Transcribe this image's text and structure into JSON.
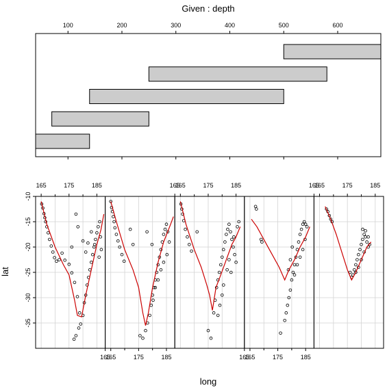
{
  "chart_data": {
    "type": "scatter",
    "title": "Given : depth",
    "xlabel": "long",
    "ylabel": "lat",
    "given": {
      "variable": "depth",
      "range": [
        40,
        680
      ],
      "ticks": [
        100,
        200,
        300,
        400,
        500,
        600
      ],
      "intervals": [
        [
          40,
          140
        ],
        [
          70,
          250
        ],
        [
          140,
          500
        ],
        [
          250,
          580
        ],
        [
          500,
          680
        ]
      ]
    },
    "panel_axes": {
      "xlim": [
        163,
        188
      ],
      "ylim": [
        -40,
        -10
      ],
      "x_ticks": [
        165,
        175,
        185
      ],
      "x_tick_labels": [
        "165",
        "175",
        "185"
      ],
      "y_ticks": [
        -10,
        -15,
        -20,
        -25,
        -30,
        -35
      ],
      "y_tick_labels": [
        "-10",
        "-15",
        "-20",
        "-25",
        "-30",
        "-35"
      ],
      "grid": true
    },
    "panels": [
      {
        "given_interval": [
          40,
          140
        ],
        "points": [
          [
            165.2,
            -11.5
          ],
          [
            165.6,
            -12.3
          ],
          [
            166.0,
            -13.4
          ],
          [
            166.3,
            -14.2
          ],
          [
            166.6,
            -15.0
          ],
          [
            167.0,
            -16.0
          ],
          [
            167.5,
            -17.2
          ],
          [
            168.0,
            -18.5
          ],
          [
            168.6,
            -19.8
          ],
          [
            169.2,
            -21.0
          ],
          [
            169.8,
            -22.1
          ],
          [
            170.5,
            -22.8
          ],
          [
            171.5,
            -22.5
          ],
          [
            172.5,
            -21.2
          ],
          [
            173.5,
            -22.6
          ],
          [
            175.0,
            -23.4
          ],
          [
            176.0,
            -25.1
          ],
          [
            177.0,
            -27.0
          ],
          [
            178.0,
            -29.8
          ],
          [
            178.8,
            -33.0
          ],
          [
            179.2,
            -35.2
          ],
          [
            178.5,
            -36.0
          ],
          [
            177.5,
            -37.5
          ],
          [
            176.8,
            -38.2
          ],
          [
            180.0,
            -33.5
          ],
          [
            180.5,
            -31.0
          ],
          [
            181.0,
            -29.5
          ],
          [
            181.5,
            -27.5
          ],
          [
            182.0,
            -26.0
          ],
          [
            182.5,
            -24.5
          ],
          [
            183.0,
            -23.0
          ],
          [
            183.5,
            -21.5
          ],
          [
            184.0,
            -20.0
          ],
          [
            184.5,
            -18.5
          ],
          [
            185.0,
            -17.2
          ],
          [
            185.5,
            -16.0
          ],
          [
            186.0,
            -15.0
          ],
          [
            186.3,
            -18.0
          ],
          [
            186.6,
            -20.5
          ],
          [
            185.8,
            -22.0
          ],
          [
            184.2,
            -19.5
          ],
          [
            183.0,
            -17.0
          ],
          [
            181.8,
            -19.2
          ],
          [
            181.0,
            -21.0
          ],
          [
            180.0,
            -18.8
          ],
          [
            178.2,
            -16.0
          ],
          [
            177.5,
            -13.5
          ],
          [
            176.0,
            -20.0
          ]
        ],
        "fit": [
          [
            165.0,
            -11.0
          ],
          [
            167.0,
            -15.5
          ],
          [
            170.0,
            -20.0
          ],
          [
            173.0,
            -23.5
          ],
          [
            175.0,
            -25.5
          ],
          [
            177.0,
            -30.5
          ],
          [
            178.0,
            -33.5
          ],
          [
            179.5,
            -33.8
          ],
          [
            181.0,
            -29.5
          ],
          [
            183.0,
            -24.5
          ],
          [
            185.0,
            -19.5
          ],
          [
            186.5,
            -16.5
          ],
          [
            187.5,
            -13.5
          ]
        ]
      },
      {
        "given_interval": [
          70,
          250
        ],
        "points": [
          [
            165.0,
            -11.0
          ],
          [
            165.3,
            -12.2
          ],
          [
            165.6,
            -13.0
          ],
          [
            165.9,
            -14.0
          ],
          [
            166.2,
            -15.0
          ],
          [
            166.5,
            -16.2
          ],
          [
            167.0,
            -17.5
          ],
          [
            167.6,
            -18.8
          ],
          [
            168.2,
            -20.0
          ],
          [
            169.0,
            -21.5
          ],
          [
            169.8,
            -22.8
          ],
          [
            172.0,
            -16.5
          ],
          [
            173.0,
            -19.5
          ],
          [
            175.5,
            -37.5
          ],
          [
            176.5,
            -38.0
          ],
          [
            177.5,
            -36.5
          ],
          [
            178.2,
            -35.0
          ],
          [
            179.0,
            -33.5
          ],
          [
            179.5,
            -31.5
          ],
          [
            180.0,
            -29.5
          ],
          [
            180.5,
            -28.0
          ],
          [
            181.0,
            -26.5
          ],
          [
            181.5,
            -25.0
          ],
          [
            182.0,
            -23.5
          ],
          [
            182.5,
            -22.0
          ],
          [
            183.0,
            -20.5
          ],
          [
            183.5,
            -19.0
          ],
          [
            184.0,
            -17.5
          ],
          [
            184.5,
            -16.5
          ],
          [
            185.0,
            -15.5
          ],
          [
            185.5,
            -17.0
          ],
          [
            186.0,
            -19.0
          ],
          [
            185.2,
            -21.5
          ],
          [
            184.0,
            -23.0
          ],
          [
            183.0,
            -24.5
          ],
          [
            182.0,
            -26.5
          ],
          [
            181.0,
            -28.0
          ],
          [
            180.2,
            -30.5
          ],
          [
            179.8,
            -19.5
          ],
          [
            178.0,
            -17.0
          ]
        ],
        "fit": [
          [
            165.0,
            -11.0
          ],
          [
            167.0,
            -15.0
          ],
          [
            170.0,
            -20.5
          ],
          [
            173.0,
            -24.5
          ],
          [
            175.0,
            -28.0
          ],
          [
            176.5,
            -33.0
          ],
          [
            177.5,
            -35.5
          ],
          [
            178.5,
            -33.0
          ],
          [
            180.0,
            -28.0
          ],
          [
            182.0,
            -23.0
          ],
          [
            184.0,
            -19.0
          ],
          [
            186.5,
            -15.5
          ],
          [
            187.5,
            -14.0
          ]
        ]
      },
      {
        "given_interval": [
          140,
          500
        ],
        "points": [
          [
            165.2,
            -11.5
          ],
          [
            165.5,
            -12.5
          ],
          [
            165.8,
            -13.5
          ],
          [
            166.2,
            -14.8
          ],
          [
            166.8,
            -16.5
          ],
          [
            167.5,
            -18.0
          ],
          [
            168.2,
            -19.5
          ],
          [
            169.0,
            -20.8
          ],
          [
            171.0,
            -17.0
          ],
          [
            175.0,
            -36.5
          ],
          [
            176.0,
            -38.0
          ],
          [
            177.0,
            -33.0
          ],
          [
            177.5,
            -30.5
          ],
          [
            178.0,
            -28.0
          ],
          [
            178.5,
            -26.5
          ],
          [
            179.0,
            -25.0
          ],
          [
            179.5,
            -23.5
          ],
          [
            180.0,
            -22.0
          ],
          [
            180.5,
            -20.5
          ],
          [
            181.0,
            -19.0
          ],
          [
            181.5,
            -17.5
          ],
          [
            182.0,
            -16.5
          ],
          [
            182.5,
            -15.5
          ],
          [
            183.0,
            -17.0
          ],
          [
            183.5,
            -18.5
          ],
          [
            184.0,
            -20.0
          ],
          [
            184.5,
            -21.5
          ],
          [
            185.0,
            -23.0
          ],
          [
            185.5,
            -16.0
          ],
          [
            186.0,
            -15.0
          ],
          [
            180.5,
            -27.5
          ],
          [
            180.0,
            -29.5
          ],
          [
            179.2,
            -31.5
          ],
          [
            178.5,
            -33.5
          ],
          [
            181.8,
            -24.5
          ],
          [
            182.5,
            -22.5
          ],
          [
            183.2,
            -25.0
          ],
          [
            184.2,
            -18.0
          ]
        ],
        "fit": [
          [
            165.0,
            -11.0
          ],
          [
            167.0,
            -15.5
          ],
          [
            170.0,
            -20.5
          ],
          [
            172.5,
            -24.0
          ],
          [
            174.5,
            -27.5
          ],
          [
            175.5,
            -29.5
          ],
          [
            176.5,
            -32.5
          ],
          [
            177.8,
            -28.0
          ],
          [
            179.5,
            -25.5
          ],
          [
            181.5,
            -22.5
          ],
          [
            183.5,
            -19.5
          ],
          [
            185.0,
            -18.0
          ],
          [
            186.5,
            -16.0
          ]
        ]
      },
      {
        "given_interval": [
          250,
          580
        ],
        "points": [
          [
            167.0,
            -12.0
          ],
          [
            167.3,
            -12.5
          ],
          [
            169.0,
            -18.5
          ],
          [
            169.3,
            -19.0
          ],
          [
            176.0,
            -37.0
          ],
          [
            177.5,
            -34.5
          ],
          [
            178.0,
            -33.0
          ],
          [
            178.5,
            -31.5
          ],
          [
            179.0,
            -30.0
          ],
          [
            179.5,
            -28.5
          ],
          [
            180.0,
            -26.5
          ],
          [
            180.5,
            -25.0
          ],
          [
            181.0,
            -23.5
          ],
          [
            181.5,
            -22.0
          ],
          [
            182.0,
            -20.5
          ],
          [
            182.5,
            -19.0
          ],
          [
            183.0,
            -17.5
          ],
          [
            183.5,
            -16.5
          ],
          [
            184.0,
            -15.5
          ],
          [
            184.5,
            -15.0
          ],
          [
            185.0,
            -15.5
          ],
          [
            185.5,
            -16.0
          ],
          [
            184.8,
            -18.5
          ],
          [
            184.0,
            -20.5
          ],
          [
            183.0,
            -22.0
          ],
          [
            182.0,
            -23.5
          ],
          [
            181.0,
            -25.5
          ],
          [
            180.2,
            -20.0
          ],
          [
            179.5,
            -22.5
          ],
          [
            178.8,
            -24.5
          ]
        ],
        "fit": [
          [
            165.5,
            -14.5
          ],
          [
            167.5,
            -16.0
          ],
          [
            170.0,
            -18.5
          ],
          [
            173.0,
            -21.5
          ],
          [
            175.5,
            -24.0
          ],
          [
            177.5,
            -26.5
          ],
          [
            179.0,
            -24.5
          ],
          [
            181.0,
            -22.5
          ],
          [
            183.0,
            -20.0
          ],
          [
            185.0,
            -18.0
          ],
          [
            186.5,
            -16.0
          ]
        ]
      },
      {
        "given_interval": [
          500,
          680
        ],
        "points": [
          [
            167.5,
            -12.5
          ],
          [
            168.0,
            -13.0
          ],
          [
            168.5,
            -13.8
          ],
          [
            169.0,
            -14.5
          ],
          [
            169.5,
            -15.0
          ],
          [
            176.0,
            -25.0
          ],
          [
            176.5,
            -26.0
          ],
          [
            177.0,
            -25.5
          ],
          [
            177.5,
            -24.5
          ],
          [
            178.0,
            -23.5
          ],
          [
            178.5,
            -22.5
          ],
          [
            179.0,
            -21.5
          ],
          [
            179.5,
            -20.5
          ],
          [
            180.0,
            -19.5
          ],
          [
            180.5,
            -18.5
          ],
          [
            181.0,
            -17.5
          ],
          [
            181.5,
            -18.0
          ],
          [
            182.0,
            -19.0
          ],
          [
            182.5,
            -20.0
          ],
          [
            183.0,
            -19.5
          ],
          [
            181.0,
            -21.0
          ],
          [
            180.0,
            -22.5
          ],
          [
            179.0,
            -24.0
          ],
          [
            178.0,
            -25.0
          ],
          [
            180.5,
            -16.5
          ],
          [
            181.5,
            -16.8
          ],
          [
            182.5,
            -18.0
          ]
        ],
        "fit": [
          [
            167.0,
            -12.0
          ],
          [
            169.0,
            -14.5
          ],
          [
            171.0,
            -17.5
          ],
          [
            173.0,
            -21.0
          ],
          [
            175.0,
            -24.5
          ],
          [
            176.5,
            -26.5
          ],
          [
            178.0,
            -25.0
          ],
          [
            180.0,
            -22.5
          ],
          [
            182.0,
            -20.0
          ],
          [
            183.5,
            -19.0
          ]
        ]
      }
    ]
  }
}
